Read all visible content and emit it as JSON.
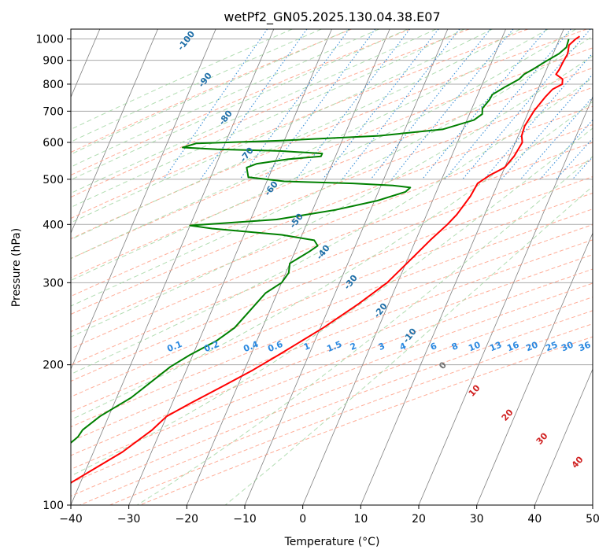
{
  "chart_data": {
    "type": "line",
    "chart_kind": "skew-T log-P diagram",
    "title": "wetPf2_GN05.2025.130.04.38.E07",
    "xlabel": "Temperature (°C)",
    "ylabel": "Pressure (hPa)",
    "xlim": [
      -40,
      50
    ],
    "ylim": [
      1050,
      100
    ],
    "y_scale": "log",
    "x_ticks": [
      -40,
      -30,
      -20,
      -10,
      0,
      10,
      20,
      30,
      40,
      50
    ],
    "y_ticks": [
      100,
      200,
      300,
      400,
      500,
      600,
      700,
      800,
      900,
      1000
    ],
    "grid": true,
    "series": [
      {
        "color": "#ff0000",
        "points": [
          [
            1013,
            13.3
          ],
          [
            1000,
            12.8
          ],
          [
            970,
            12.1
          ],
          [
            930,
            12.5
          ],
          [
            890,
            12.3
          ],
          [
            860,
            12.2
          ],
          [
            840,
            12.0
          ],
          [
            820,
            13.5
          ],
          [
            800,
            13.8
          ],
          [
            780,
            12.5
          ],
          [
            750,
            11.8
          ],
          [
            700,
            10.9
          ],
          [
            650,
            10.4
          ],
          [
            620,
            10.6
          ],
          [
            600,
            11.2
          ],
          [
            560,
            10.8
          ],
          [
            530,
            10.0
          ],
          [
            510,
            8.0
          ],
          [
            490,
            6.5
          ],
          [
            460,
            6.2
          ],
          [
            420,
            5.2
          ],
          [
            400,
            4.3
          ],
          [
            370,
            2.5
          ],
          [
            340,
            0.8
          ],
          [
            300,
            -1.8
          ],
          [
            270,
            -5.2
          ],
          [
            240,
            -9.5
          ],
          [
            210,
            -15.2
          ],
          [
            195,
            -18.5
          ],
          [
            180,
            -22.5
          ],
          [
            165,
            -27.0
          ],
          [
            155,
            -30.0
          ],
          [
            145,
            -31.5
          ],
          [
            130,
            -35.0
          ],
          [
            120,
            -38.5
          ],
          [
            112,
            -41.5
          ],
          [
            100,
            -45.0
          ]
        ]
      },
      {
        "color": "#008000",
        "points": [
          [
            1000,
            11.6
          ],
          [
            960,
            11.8
          ],
          [
            930,
            11.0
          ],
          [
            900,
            9.5
          ],
          [
            860,
            7.6
          ],
          [
            840,
            6.5
          ],
          [
            820,
            6.0
          ],
          [
            790,
            4.2
          ],
          [
            760,
            2.5
          ],
          [
            740,
            2.4
          ],
          [
            710,
            1.8
          ],
          [
            690,
            2.2
          ],
          [
            670,
            1.2
          ],
          [
            640,
            -3.5
          ],
          [
            620,
            -14.0
          ],
          [
            605,
            -31.0
          ],
          [
            597,
            -45.0
          ],
          [
            585,
            -47.0
          ],
          [
            580,
            -41.0
          ],
          [
            575,
            -30.0
          ],
          [
            568,
            -22.5
          ],
          [
            560,
            -22.5
          ],
          [
            552,
            -28.0
          ],
          [
            540,
            -33.0
          ],
          [
            530,
            -34.5
          ],
          [
            505,
            -33.5
          ],
          [
            495,
            -27.0
          ],
          [
            490,
            -15.0
          ],
          [
            485,
            -8.0
          ],
          [
            480,
            -4.8
          ],
          [
            470,
            -5.3
          ],
          [
            450,
            -9.5
          ],
          [
            430,
            -16.0
          ],
          [
            410,
            -25.5
          ],
          [
            402,
            -35.0
          ],
          [
            398,
            -40.0
          ],
          [
            392,
            -36.0
          ],
          [
            380,
            -23.5
          ],
          [
            370,
            -17.5
          ],
          [
            360,
            -16.5
          ],
          [
            350,
            -17.5
          ],
          [
            330,
            -20.0
          ],
          [
            315,
            -19.5
          ],
          [
            300,
            -20.0
          ],
          [
            285,
            -22.0
          ],
          [
            260,
            -23.5
          ],
          [
            240,
            -24.8
          ],
          [
            225,
            -27.0
          ],
          [
            210,
            -30.5
          ],
          [
            198,
            -33.0
          ],
          [
            185,
            -35.0
          ],
          [
            170,
            -37.5
          ],
          [
            155,
            -41.5
          ],
          [
            145,
            -43.5
          ],
          [
            140,
            -43.8
          ],
          [
            134,
            -45.0
          ],
          [
            127,
            -48.0
          ],
          [
            120,
            -50.5
          ],
          [
            110,
            -53.0
          ],
          [
            100,
            -56.5
          ]
        ]
      }
    ],
    "dry_adiabat_labels": [
      "-100",
      "-90",
      "-80",
      "-70",
      "-60",
      "-50",
      "-40",
      "-30",
      "-20",
      "-10"
    ],
    "mixing_ratio_labels": [
      "0.1",
      "0.2",
      "0.4",
      "0.6",
      "1",
      "1.5",
      "2",
      "3",
      "4",
      "6",
      "8",
      "10",
      "13",
      "16",
      "20",
      "25",
      "30",
      "36"
    ],
    "moist_adiabat_labels": [
      "0",
      "10",
      "20",
      "30",
      "40"
    ],
    "colors": {
      "temperature": "#ff0000",
      "dewpoint": "#008000",
      "isotherm": "#808080",
      "isobar": "#a9a9a9",
      "dry_adiabat": "#ff9a80",
      "moist_adiabat": "#9fd49f",
      "mixing_ratio": "#3a8fd8",
      "dry_adiabat_label": "#1f6fa8",
      "mixing_ratio_label": "#2a88e0",
      "moist_adiabat_label": "#d02020",
      "zero_label": "#707070"
    }
  }
}
